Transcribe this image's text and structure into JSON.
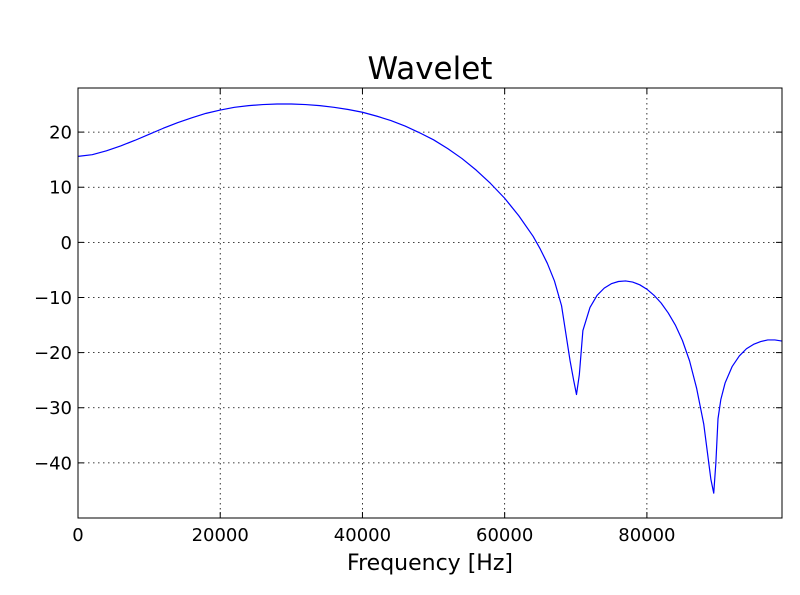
{
  "chart_data": {
    "type": "line",
    "title": "Wavelet",
    "xlabel": "Frequency [Hz]",
    "ylabel": "",
    "xlim": [
      0,
      99000
    ],
    "ylim": [
      -50,
      28
    ],
    "xticks": [
      0,
      20000,
      40000,
      60000,
      80000
    ],
    "yticks": [
      20,
      10,
      0,
      -10,
      -20,
      -30,
      -40
    ],
    "xtick_labels": [
      "0",
      "20000",
      "40000",
      "60000",
      "80000"
    ],
    "ytick_labels": [
      "20",
      "10",
      "0",
      "−10",
      "−20",
      "−30",
      "−40"
    ],
    "grid": true,
    "series": [
      {
        "color": "#0000ff",
        "x": [
          0,
          2000,
          4000,
          6000,
          8000,
          10000,
          12000,
          14000,
          16000,
          18000,
          20000,
          22000,
          24000,
          26000,
          28000,
          30000,
          32000,
          34000,
          36000,
          38000,
          40000,
          42000,
          44000,
          46000,
          48000,
          50000,
          52000,
          54000,
          56000,
          58000,
          60000,
          62000,
          64000,
          65000,
          66000,
          67000,
          68000,
          68600,
          69200,
          69700,
          70100,
          70500,
          71000,
          72000,
          73000,
          74000,
          75000,
          76000,
          77000,
          78000,
          79000,
          80000,
          81000,
          82000,
          83000,
          84000,
          85000,
          86000,
          87000,
          88000,
          88600,
          89000,
          89400,
          89700,
          90000,
          90400,
          91000,
          92000,
          93000,
          94000,
          95000,
          96000,
          97000,
          98000,
          99000
        ],
        "y": [
          15.6,
          15.9,
          16.6,
          17.5,
          18.5,
          19.6,
          20.7,
          21.7,
          22.6,
          23.4,
          24.0,
          24.5,
          24.8,
          25.0,
          25.1,
          25.1,
          25.0,
          24.8,
          24.5,
          24.1,
          23.6,
          22.9,
          22.1,
          21.1,
          19.9,
          18.6,
          17.0,
          15.2,
          13.1,
          10.7,
          8.0,
          4.8,
          1.1,
          -1.2,
          -3.8,
          -7.0,
          -11.5,
          -16.5,
          -21.5,
          -25.0,
          -27.6,
          -24.0,
          -16.0,
          -11.8,
          -9.6,
          -8.3,
          -7.5,
          -7.1,
          -7.0,
          -7.2,
          -7.7,
          -8.5,
          -9.6,
          -11.0,
          -12.8,
          -15.0,
          -17.8,
          -21.5,
          -26.5,
          -33.0,
          -39.0,
          -43.0,
          -45.5,
          -40.0,
          -32.0,
          -28.5,
          -25.5,
          -22.5,
          -20.6,
          -19.3,
          -18.5,
          -18.0,
          -17.7,
          -17.7,
          -17.9
        ]
      }
    ]
  }
}
